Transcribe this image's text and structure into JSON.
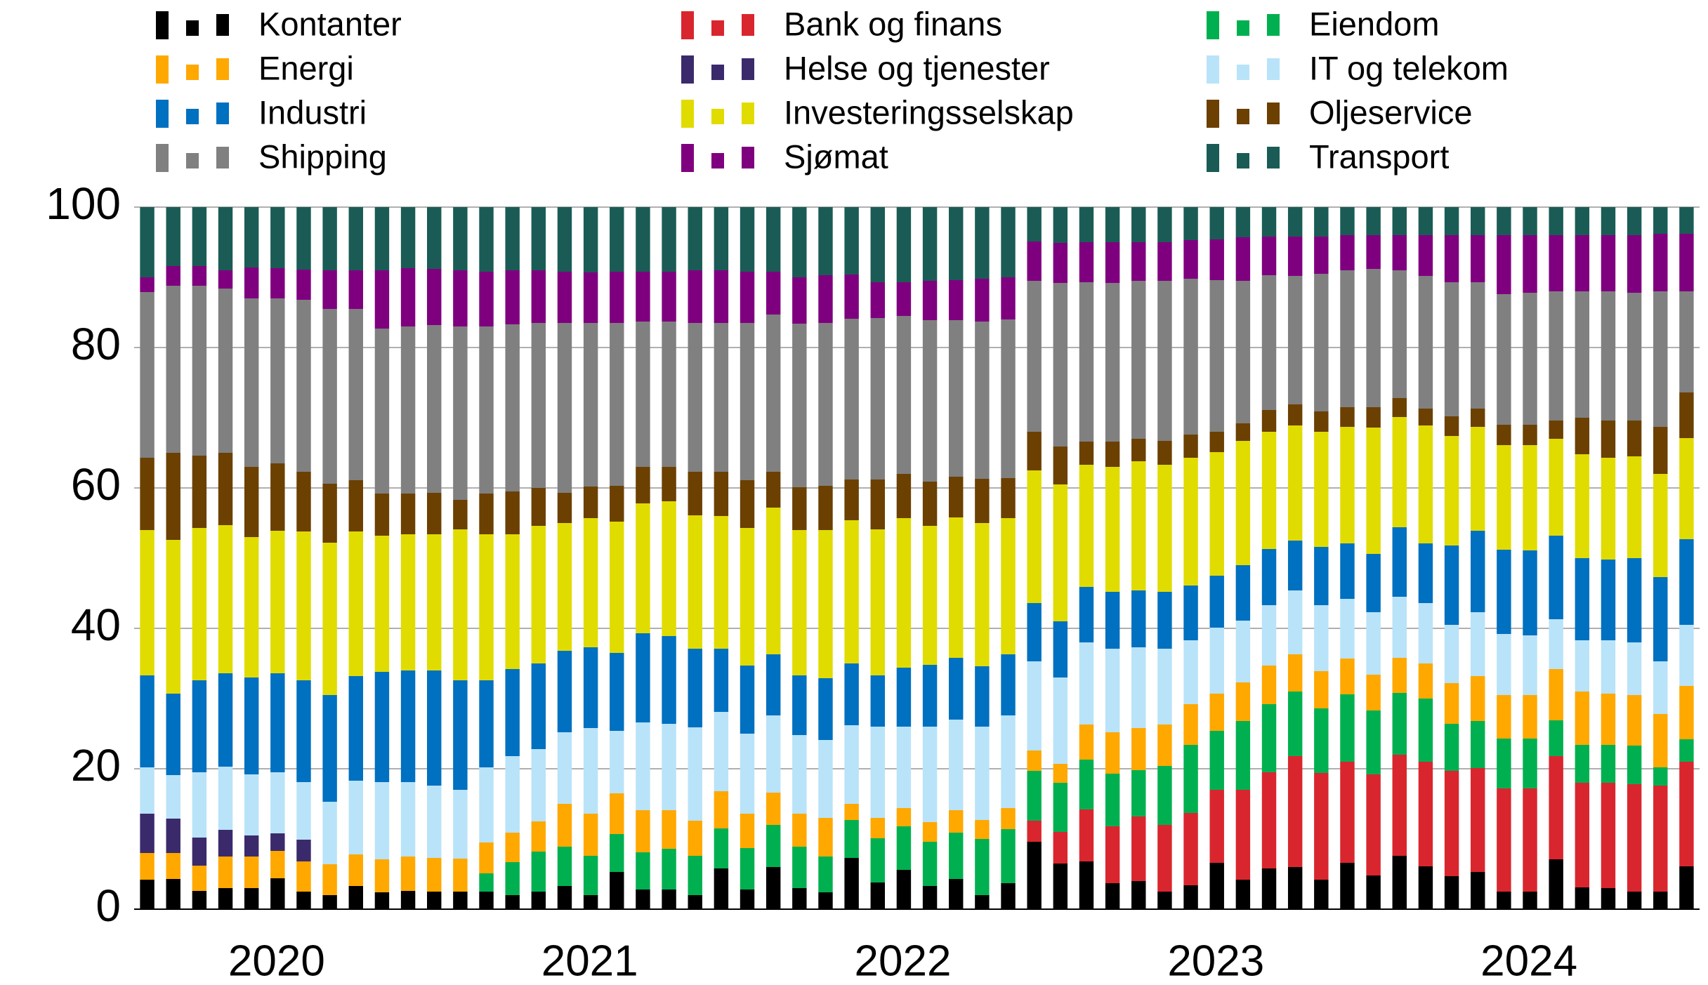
{
  "chart_data": {
    "type": "bar",
    "stacked": true,
    "grid": true,
    "legend": "top",
    "categories": [
      null,
      null,
      null,
      null,
      null,
      null,
      null,
      null,
      null,
      null,
      null,
      null,
      null,
      null,
      null,
      null,
      null,
      null,
      null,
      null,
      null,
      null,
      null,
      null,
      null,
      null,
      null,
      null,
      null,
      null,
      null,
      null,
      null,
      null,
      null,
      null,
      null,
      null,
      null,
      null,
      null,
      null,
      null,
      null,
      null,
      null,
      null,
      null,
      null,
      null,
      null,
      null,
      null,
      null,
      null,
      null,
      null,
      null,
      null,
      null
    ],
    "groups": [
      "2020",
      "2021",
      "2022",
      "2023",
      "2024"
    ],
    "ylim": [
      0,
      100
    ],
    "yticks": [
      0,
      20,
      40,
      60,
      80,
      100
    ],
    "series": [
      {
        "name": "Kontanter",
        "color": "#000000",
        "values": [
          4.2,
          4.3,
          2.6,
          3,
          3,
          4.4,
          2.5,
          2,
          3.3,
          2.4,
          2.6,
          2.5,
          2.5,
          2.5,
          2,
          2.5,
          3.3,
          2,
          5.3,
          2.8,
          2.8,
          2,
          5.8,
          2.8,
          6,
          3,
          2.4,
          7.3,
          3.8,
          5.6,
          3.3,
          4.3,
          2,
          3.7,
          9.6,
          6.5,
          6.8,
          3.7,
          4,
          2.5,
          3.4,
          6.6,
          4.2,
          5.8,
          6,
          4.2,
          6.6,
          4.8,
          7.6,
          6.1,
          4.7,
          5.3,
          2.5,
          2.5,
          7.1,
          3.1,
          3,
          2.5,
          2.5,
          6.1
        ]
      },
      {
        "name": "Bank og finans",
        "color": "#d9262e",
        "values": [
          0,
          0,
          0,
          0,
          0,
          0,
          0,
          0,
          0,
          0,
          0,
          0,
          0,
          0,
          0,
          0,
          0,
          0,
          0,
          0,
          0,
          0,
          0,
          0,
          0,
          0,
          0,
          0,
          0,
          0,
          0,
          0,
          0,
          0,
          3,
          4.5,
          7.4,
          8.1,
          9.2,
          9.5,
          10.3,
          10.4,
          12.8,
          13.7,
          15.8,
          15.2,
          14.4,
          14.4,
          14.4,
          14.9,
          15,
          14.8,
          14.7,
          14.7,
          14.7,
          14.9,
          15,
          15.3,
          15.1,
          14.9
        ]
      },
      {
        "name": "Eiendom",
        "color": "#00b050",
        "values": [
          0,
          0,
          0,
          0,
          0,
          0,
          0,
          0,
          0,
          0,
          0,
          0,
          0,
          2.6,
          4.7,
          5.7,
          5.6,
          5.6,
          5.4,
          5.3,
          5.8,
          5.6,
          5.7,
          5.9,
          6,
          5.9,
          5.1,
          5.4,
          6.3,
          6.2,
          6.3,
          6.6,
          8,
          7.7,
          7.1,
          7,
          7.1,
          7.5,
          6.6,
          8.4,
          9.7,
          8.4,
          9.8,
          9.7,
          9.2,
          9.2,
          9.6,
          9.1,
          8.8,
          9,
          6.7,
          6.7,
          7.1,
          7.1,
          5.1,
          5.4,
          5.4,
          5.5,
          2.6,
          3.2
        ]
      },
      {
        "name": "Energi",
        "color": "#ffa800",
        "values": [
          3.8,
          3.7,
          3.6,
          4.5,
          4.5,
          3.9,
          4.3,
          4.4,
          4.5,
          4.7,
          4.9,
          4.8,
          4.7,
          4.4,
          4.2,
          4.3,
          6.1,
          6,
          5.8,
          6,
          5.5,
          5,
          5.3,
          4.9,
          4.6,
          4.7,
          5.5,
          2.3,
          2.9,
          2.6,
          2.8,
          3.2,
          2.7,
          3,
          2.9,
          2.7,
          5,
          5.9,
          6,
          5.9,
          5.8,
          5.3,
          5.5,
          5.5,
          5.3,
          5.3,
          5.1,
          5.1,
          5,
          5,
          5.8,
          6.4,
          6.2,
          6.2,
          7.3,
          7.6,
          7.3,
          7.2,
          7.6,
          7.6
        ]
      },
      {
        "name": "Helse og tjenester",
        "color": "#3b2a6b",
        "values": [
          5.6,
          4.9,
          4,
          3.8,
          3,
          2.5,
          3.1,
          0,
          0,
          0,
          0,
          0,
          0,
          0,
          0,
          0,
          0,
          0,
          0,
          0,
          0,
          0,
          0,
          0,
          0,
          0,
          0,
          0,
          0,
          0,
          0,
          0,
          0,
          0,
          0,
          0,
          0,
          0,
          0,
          0,
          0,
          0,
          0,
          0,
          0,
          0,
          0,
          0,
          0,
          0,
          0,
          0,
          0,
          0,
          0,
          0,
          0,
          0,
          0,
          0
        ]
      },
      {
        "name": "IT og telekom",
        "color": "#b9e3f8",
        "values": [
          6.6,
          6.2,
          9.3,
          9,
          8.7,
          8.7,
          8.2,
          8.9,
          10.5,
          11,
          10.6,
          10.3,
          9.8,
          10.7,
          10.9,
          10.3,
          10.2,
          12.2,
          8.9,
          12.5,
          12.3,
          13.3,
          11.3,
          11.4,
          11,
          11.2,
          11.1,
          11.2,
          13,
          11.6,
          13.6,
          12.9,
          13.3,
          13.2,
          12.7,
          12.3,
          11.7,
          11.9,
          11.5,
          10.8,
          9.1,
          9.4,
          8.8,
          8.6,
          9.1,
          9.4,
          8.5,
          8.9,
          8.7,
          8.6,
          8.3,
          9.1,
          8.7,
          8.5,
          7.1,
          7.3,
          7.6,
          7.5,
          7.5,
          8.7
        ]
      },
      {
        "name": "Industri",
        "color": "#0070c0",
        "values": [
          13.1,
          11.6,
          13.1,
          13.3,
          13.8,
          14.1,
          14.5,
          15.2,
          14.9,
          15.7,
          15.9,
          16.4,
          15.6,
          12.4,
          12.4,
          12.2,
          11.6,
          11.5,
          11.1,
          12.7,
          12.5,
          11.2,
          9,
          9.7,
          8.7,
          8.5,
          8.8,
          8.8,
          7.3,
          8.4,
          8.8,
          8.8,
          8.6,
          8.7,
          8.3,
          8,
          7.9,
          8.1,
          8.1,
          8.1,
          7.8,
          7.4,
          7.9,
          8,
          7.1,
          8.3,
          7.9,
          8.3,
          9.9,
          8.5,
          11.3,
          11.6,
          12,
          12.1,
          11.9,
          11.7,
          11.5,
          12,
          12,
          12.2
        ]
      },
      {
        "name": "Investeringsselskap",
        "color": "#e0dc00",
        "values": [
          20.7,
          21.9,
          21.7,
          21.1,
          20,
          20.3,
          21.2,
          21.7,
          20.6,
          19.4,
          19.4,
          19.4,
          21.5,
          20.8,
          19.2,
          19.6,
          18.2,
          18.4,
          18.7,
          18.5,
          19.2,
          19,
          18.9,
          19.6,
          20.9,
          20.7,
          21.1,
          20.4,
          20.8,
          21.3,
          19.8,
          20,
          20.4,
          19.4,
          18.9,
          19.5,
          17.4,
          17.8,
          18.4,
          18.1,
          18.2,
          17.6,
          17.7,
          16.7,
          16.4,
          16.4,
          16.6,
          18,
          15.7,
          16.8,
          15.6,
          14.8,
          14.9,
          15,
          13.8,
          14.8,
          14.5,
          14.5,
          14.7,
          14.4
        ]
      },
      {
        "name": "Oljeservice",
        "color": "#6b4000",
        "values": [
          10.3,
          12.4,
          10.3,
          10.3,
          10,
          9.6,
          8.5,
          8.4,
          7.3,
          6,
          5.8,
          5.9,
          4.2,
          5.8,
          6.1,
          5.4,
          4.3,
          4.5,
          5.1,
          5.2,
          4.9,
          6.2,
          6.3,
          6.8,
          5.1,
          6.1,
          6.3,
          5.8,
          7.1,
          6.3,
          6.3,
          5.8,
          6.3,
          5.7,
          5.5,
          5.4,
          3.3,
          3.6,
          3.2,
          3.4,
          3.3,
          2.9,
          2.5,
          3.1,
          3,
          2.9,
          2.8,
          2.9,
          2.7,
          2.4,
          2.8,
          2.6,
          2.9,
          2.9,
          2.6,
          5.2,
          5.3,
          5.1,
          6.7,
          6.5
        ]
      },
      {
        "name": "Shipping",
        "color": "#808080",
        "values": [
          23.6,
          23.8,
          24.2,
          23.4,
          24,
          23.5,
          24.5,
          24.9,
          24.4,
          23.5,
          23.8,
          23.9,
          24.7,
          23.8,
          23.8,
          23.5,
          24.2,
          23.3,
          23.2,
          20.7,
          20.7,
          21.2,
          21.2,
          22.4,
          22.4,
          23.3,
          23.2,
          22.9,
          23,
          22.5,
          23,
          22.3,
          22.4,
          22.6,
          21.5,
          23.3,
          22.7,
          22.6,
          22.5,
          22.8,
          22.2,
          21.6,
          20.3,
          19.2,
          18.3,
          19.6,
          19.5,
          19.7,
          18.2,
          18.9,
          19.1,
          18,
          18.6,
          18.8,
          18.4,
          18,
          18.4,
          18.2,
          19.3,
          14.4
        ]
      },
      {
        "name": "Sjømat",
        "color": "#7f007f",
        "values": [
          2.1,
          2.8,
          2.8,
          2.6,
          4.4,
          4.3,
          4.3,
          5.5,
          5.5,
          8.3,
          8.3,
          8,
          8,
          7.8,
          7.7,
          7.5,
          7.3,
          7.2,
          7.3,
          7.1,
          7.1,
          7.5,
          7.5,
          7.3,
          6.1,
          6.6,
          6.8,
          6.3,
          5.1,
          4.8,
          5.6,
          5.7,
          6.1,
          6,
          5.6,
          5.7,
          5.7,
          5.8,
          5.5,
          5.5,
          5.5,
          5.8,
          6.2,
          5.5,
          5.6,
          5.3,
          5,
          4.8,
          5,
          5.8,
          6.7,
          6.7,
          8.4,
          8.2,
          8,
          8,
          8,
          8.2,
          8.2,
          8.2
        ]
      },
      {
        "name": "Transport",
        "color": "#1a5c55",
        "values": [
          10,
          8.4,
          8.4,
          9,
          8.6,
          8.7,
          8.9,
          9,
          9,
          9,
          8.7,
          8.8,
          9,
          9.2,
          9,
          9,
          9.2,
          9.3,
          9.2,
          9.2,
          9.2,
          9,
          9,
          9.2,
          9.2,
          10,
          9.7,
          9.6,
          10.7,
          10.7,
          10.5,
          10.4,
          10.2,
          10,
          4.9,
          5.1,
          5,
          5,
          5,
          5,
          4.7,
          4.6,
          4.3,
          4.2,
          4.2,
          4.2,
          4,
          4,
          4,
          4,
          4,
          4,
          4,
          4,
          4,
          4,
          4,
          4,
          3.8,
          3.8
        ]
      }
    ]
  }
}
